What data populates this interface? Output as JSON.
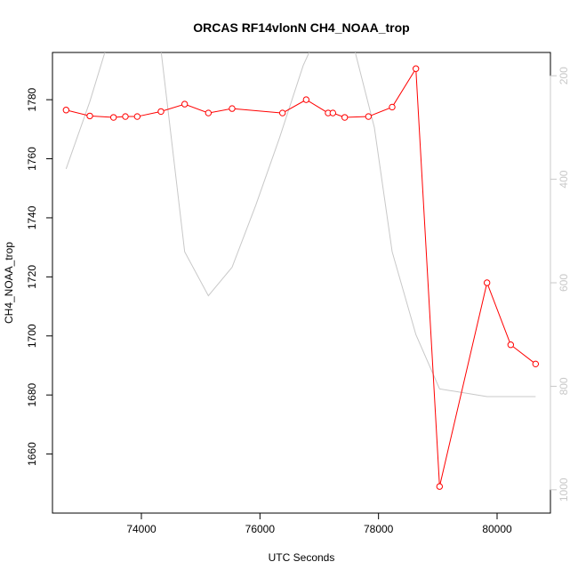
{
  "chart_data": {
    "type": "line",
    "title": "ORCAS RF14vlonN CH4_NOAA_trop",
    "xlabel": "UTC Seconds",
    "ylabel": "CH4_NOAA_trop",
    "xlim": [
      72500,
      80900
    ],
    "ylim": [
      1640,
      1796
    ],
    "y2lim": [
      1045,
      155
    ],
    "y2_reversed": true,
    "x_ticks": [
      74000,
      76000,
      78000,
      80000
    ],
    "x_tick_labels": [
      "74000",
      "76000",
      "78000",
      "80000"
    ],
    "y_ticks": [
      1660,
      1680,
      1700,
      1720,
      1740,
      1760,
      1780
    ],
    "y_tick_labels": [
      "1660",
      "1680",
      "1700",
      "1720",
      "1740",
      "1760",
      "1780"
    ],
    "y2_ticks": [
      200,
      400,
      600,
      800,
      1000
    ],
    "y2_tick_labels": [
      "200",
      "400",
      "600",
      "800",
      "1000"
    ],
    "grid": false,
    "legend": "none",
    "series": [
      {
        "color": "#ff0000",
        "marker": "open-circle",
        "axis": "left",
        "x": [
          72730,
          73130,
          73530,
          73730,
          73930,
          74330,
          74730,
          75130,
          75530,
          76380,
          76780,
          77150,
          77230,
          77430,
          77830,
          78230,
          78630,
          79030,
          79830,
          80230,
          80650
        ],
        "y": [
          1776.5,
          1774.5,
          1774,
          1774.3,
          1774.3,
          1776,
          1778.5,
          1775.5,
          1777,
          1775.5,
          1780,
          1775.5,
          1775.5,
          1774,
          1774.3,
          1777.5,
          1790.5,
          1649,
          1718,
          1697,
          1690.5
        ]
      },
      {
        "color": "#c8c8c8",
        "marker": "none",
        "axis": "right",
        "x": [
          72730,
          73130,
          73530,
          73930,
          74330,
          74730,
          75130,
          75530,
          75930,
          76330,
          76730,
          77130,
          77530,
          77930,
          78230,
          78630,
          79030,
          79830,
          80230,
          80650
        ],
        "y": [
          380,
          250,
          100,
          60,
          150,
          540,
          625,
          570,
          450,
          320,
          180,
          80,
          120,
          300,
          540,
          700,
          805,
          820,
          820,
          820
        ]
      }
    ]
  }
}
